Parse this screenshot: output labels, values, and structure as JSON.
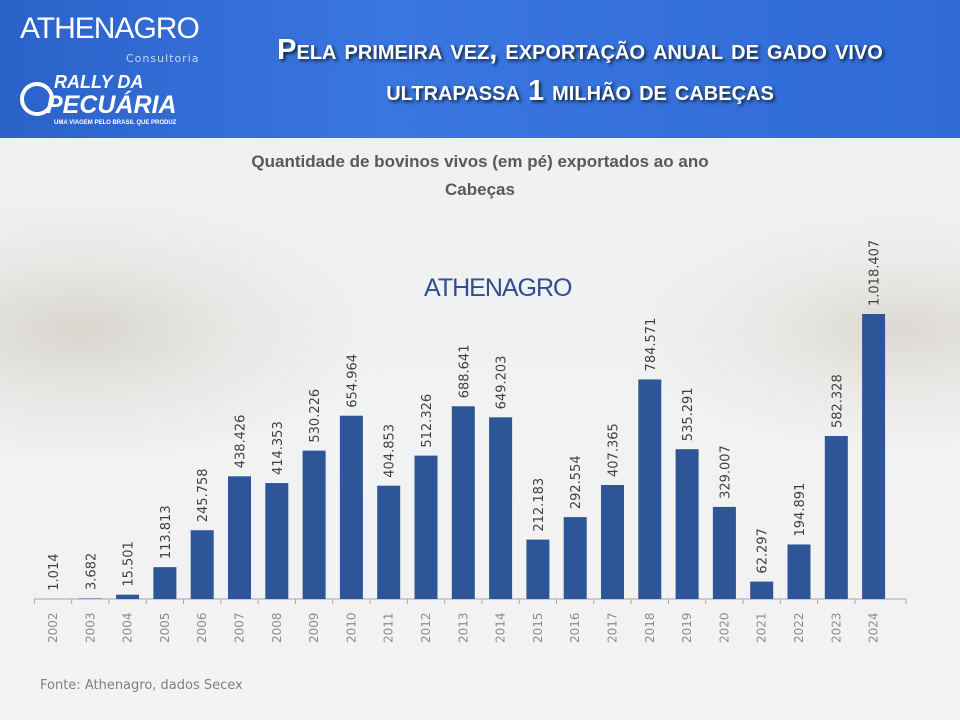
{
  "header": {
    "logo_brand": "ATHENAGRO",
    "logo_brand_sub": "Consultoria",
    "logo_rally_line1": "RALLY DA",
    "logo_rally_line2": "PECUÁRIA",
    "logo_rally_tagline": "UMA VIAGEM PELO BRASIL QUE PRODUZ",
    "headline": "Pela primeira vez, exportação anual de gado vivo  ultrapassa 1 milhão de cabeças"
  },
  "watermark": "ATHENAGRO",
  "source": "Fonte: Athenagro, dados Secex",
  "colors": {
    "bar": "#2e5597",
    "header": "#2f6ad6"
  },
  "chart_data": {
    "type": "bar",
    "title": "Quantidade de bovinos vivos (em pé)  exportados ao ano",
    "subtitle": "Cabeças",
    "xlabel": "",
    "ylabel": "",
    "ylim": [
      0,
      1018407
    ],
    "grid": false,
    "categories": [
      "2002",
      "2003",
      "2004",
      "2005",
      "2006",
      "2007",
      "2008",
      "2009",
      "2010",
      "2011",
      "2012",
      "2013",
      "2014",
      "2015",
      "2016",
      "2017",
      "2018",
      "2019",
      "2020",
      "2021",
      "2022",
      "2023",
      "2024"
    ],
    "values": [
      1014,
      3682,
      15501,
      113813,
      245758,
      438426,
      414353,
      530226,
      654964,
      404853,
      512326,
      688641,
      649203,
      212183,
      292554,
      407365,
      784571,
      535291,
      329007,
      62297,
      194891,
      582328,
      1018407
    ],
    "data_labels": [
      "1.014",
      "3.682",
      "15.501",
      "113.813",
      "245.758",
      "438.426",
      "414.353",
      "530.226",
      "654.964",
      "404.853",
      "512.326",
      "688.641",
      "649.203",
      "212.183",
      "292.554",
      "407.365",
      "784.571",
      "535.291",
      "329.007",
      "62.297",
      "194.891",
      "582.328",
      "1.018.407"
    ]
  }
}
